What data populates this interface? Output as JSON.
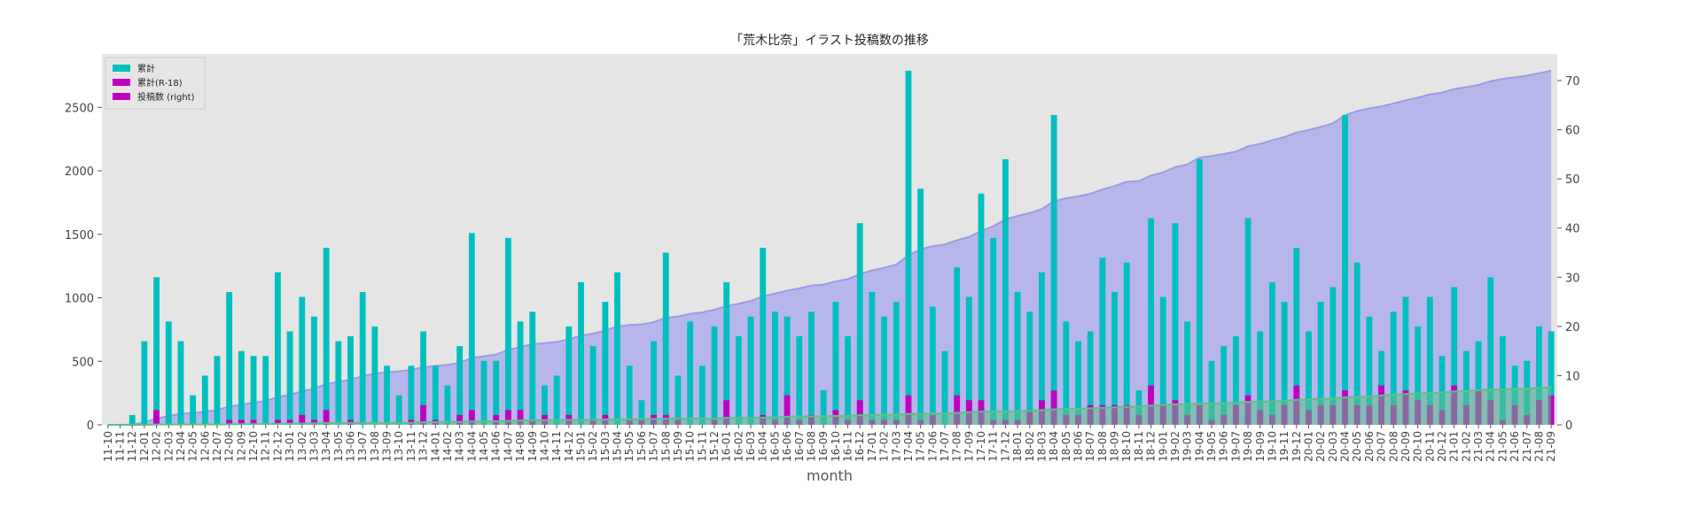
{
  "chart_data": {
    "type": "bar",
    "title": "「荒木比奈」イラスト投稿数の推移",
    "xlabel": "month",
    "categories": [
      "11-10",
      "11-11",
      "11-12",
      "12-01",
      "12-02",
      "12-03",
      "12-04",
      "12-05",
      "12-06",
      "12-07",
      "12-08",
      "12-09",
      "12-10",
      "12-11",
      "12-12",
      "13-01",
      "13-02",
      "13-03",
      "13-04",
      "13-05",
      "13-06",
      "13-07",
      "13-08",
      "13-09",
      "13-10",
      "13-11",
      "13-12",
      "14-01",
      "14-02",
      "14-03",
      "14-04",
      "14-05",
      "14-06",
      "14-07",
      "14-08",
      "14-09",
      "14-10",
      "14-11",
      "14-12",
      "15-01",
      "15-02",
      "15-03",
      "15-04",
      "15-05",
      "15-06",
      "15-07",
      "15-08",
      "15-09",
      "15-10",
      "15-11",
      "15-12",
      "16-01",
      "16-02",
      "16-03",
      "16-04",
      "16-05",
      "16-06",
      "16-07",
      "16-08",
      "16-09",
      "16-10",
      "16-11",
      "16-12",
      "17-01",
      "17-02",
      "17-03",
      "17-04",
      "17-05",
      "17-06",
      "17-07",
      "17-08",
      "17-09",
      "17-10",
      "17-11",
      "17-12",
      "18-01",
      "18-02",
      "18-03",
      "18-04",
      "18-05",
      "18-06",
      "18-07",
      "18-08",
      "18-09",
      "18-10",
      "18-11",
      "18-12",
      "19-01",
      "19-02",
      "19-03",
      "19-04",
      "19-05",
      "19-06",
      "19-07",
      "19-08",
      "19-09",
      "19-10",
      "19-11",
      "19-12",
      "20-01",
      "20-02",
      "20-03",
      "20-04",
      "20-05",
      "20-06",
      "20-07",
      "20-08",
      "20-09",
      "20-10",
      "20-11",
      "20-12",
      "21-01",
      "21-02",
      "21-03",
      "21-04",
      "21-05",
      "21-06",
      "21-07",
      "21-08",
      "21-09"
    ],
    "series": [
      {
        "name": "累計",
        "kind": "area",
        "color": "#b3b3ea",
        "line_color": "#9c9ce2",
        "values": [
          0,
          0,
          2,
          19,
          49,
          70,
          87,
          93,
          103,
          117,
          144,
          159,
          173,
          187,
          218,
          237,
          263,
          285,
          321,
          338,
          356,
          383,
          403,
          415,
          421,
          433,
          452,
          464,
          472,
          488,
          527,
          540,
          553,
          591,
          612,
          635,
          643,
          653,
          673,
          702,
          718,
          743,
          774,
          786,
          791,
          808,
          843,
          853,
          874,
          886,
          906,
          935,
          953,
          975,
          1011,
          1034,
          1056,
          1074,
          1097,
          1104,
          1129,
          1147,
          1188,
          1215,
          1237,
          1262,
          1334,
          1382,
          1406,
          1421,
          1453,
          1479,
          1526,
          1564,
          1618,
          1645,
          1668,
          1699,
          1762,
          1783,
          1800,
          1819,
          1853,
          1880,
          1913,
          1920,
          1962,
          1988,
          2029,
          2050,
          2104,
          2117,
          2133,
          2151,
          2193,
          2212,
          2241,
          2266,
          2302,
          2321,
          2346,
          2374,
          2437,
          2470,
          2492,
          2507,
          2530,
          2556,
          2576,
          2602,
          2616,
          2644,
          2659,
          2676,
          2706,
          2724,
          2736,
          2749,
          2769,
          2788
        ]
      },
      {
        "name": "累計(R-18)",
        "kind": "area",
        "color": "#5fbf8a",
        "line_color": "#5fbf8a",
        "values": [
          0,
          0,
          0,
          0,
          3,
          3,
          3,
          3,
          3,
          3,
          4,
          5,
          6,
          6,
          7,
          8,
          10,
          11,
          14,
          14,
          15,
          15,
          15,
          15,
          15,
          16,
          20,
          21,
          21,
          23,
          26,
          26,
          28,
          31,
          34,
          35,
          37,
          37,
          39,
          39,
          40,
          42,
          42,
          43,
          44,
          46,
          48,
          49,
          49,
          49,
          50,
          55,
          55,
          55,
          57,
          58,
          64,
          65,
          67,
          67,
          70,
          71,
          76,
          77,
          78,
          79,
          85,
          86,
          88,
          88,
          94,
          99,
          104,
          105,
          106,
          107,
          110,
          115,
          122,
          124,
          126,
          130,
          134,
          138,
          142,
          144,
          152,
          156,
          161,
          163,
          167,
          168,
          170,
          174,
          180,
          183,
          185,
          189,
          197,
          200,
          204,
          208,
          215,
          219,
          223,
          231,
          235,
          242,
          247,
          251,
          254,
          262,
          266,
          273,
          278,
          279,
          283,
          285,
          290,
          296
        ]
      },
      {
        "name": "投稿数 (right)",
        "kind": "bar",
        "axis": "y2",
        "color": "#00bfbf",
        "values": [
          0,
          0,
          2,
          17,
          30,
          21,
          17,
          6,
          10,
          14,
          27,
          15,
          14,
          14,
          31,
          19,
          26,
          22,
          36,
          17,
          18,
          27,
          20,
          12,
          6,
          12,
          19,
          12,
          8,
          16,
          39,
          13,
          13,
          38,
          21,
          23,
          8,
          10,
          20,
          29,
          16,
          25,
          31,
          12,
          5,
          17,
          35,
          10,
          21,
          12,
          20,
          29,
          18,
          22,
          36,
          23,
          22,
          18,
          23,
          7,
          25,
          18,
          41,
          27,
          22,
          25,
          72,
          48,
          24,
          15,
          32,
          26,
          47,
          38,
          54,
          27,
          23,
          31,
          63,
          21,
          17,
          19,
          34,
          27,
          33,
          7,
          42,
          26,
          41,
          21,
          54,
          13,
          16,
          18,
          42,
          19,
          29,
          25,
          36,
          19,
          25,
          28,
          63,
          33,
          22,
          15,
          23,
          26,
          20,
          26,
          14,
          28,
          15,
          17,
          30,
          18,
          12,
          13,
          20,
          19
        ]
      },
      {
        "kind": "bar",
        "axis": "y2",
        "color": "#bf00bf",
        "values": [
          0,
          0,
          0,
          0,
          3,
          0,
          0,
          0,
          0,
          0,
          1,
          1,
          1,
          0,
          1,
          1,
          2,
          1,
          3,
          0,
          1,
          0,
          0,
          0,
          0,
          1,
          4,
          1,
          0,
          2,
          3,
          0,
          2,
          3,
          3,
          1,
          2,
          0,
          2,
          0,
          1,
          2,
          0,
          1,
          1,
          2,
          2,
          1,
          0,
          0,
          1,
          5,
          0,
          0,
          2,
          1,
          6,
          1,
          2,
          0,
          3,
          1,
          5,
          1,
          1,
          1,
          6,
          1,
          2,
          0,
          6,
          5,
          5,
          1,
          1,
          1,
          3,
          5,
          7,
          2,
          2,
          4,
          4,
          4,
          4,
          2,
          8,
          4,
          5,
          2,
          4,
          1,
          2,
          4,
          6,
          3,
          2,
          4,
          8,
          3,
          4,
          4,
          7,
          4,
          4,
          8,
          4,
          7,
          5,
          4,
          3,
          8,
          4,
          7,
          5,
          1,
          4,
          2,
          5,
          6
        ]
      }
    ],
    "legend_colors": [
      "#00bfbf",
      "#bf00bf",
      "#bf00bf"
    ],
    "legend": "upper left",
    "ylim": [
      0,
      2920
    ],
    "yticks": [
      0,
      500,
      1000,
      1500,
      2000,
      2500
    ],
    "y2lim": [
      0,
      75.4
    ],
    "y2ticks": [
      0,
      10,
      20,
      30,
      40,
      50,
      60,
      70
    ],
    "grid": false,
    "background": "#e5e5e5"
  }
}
